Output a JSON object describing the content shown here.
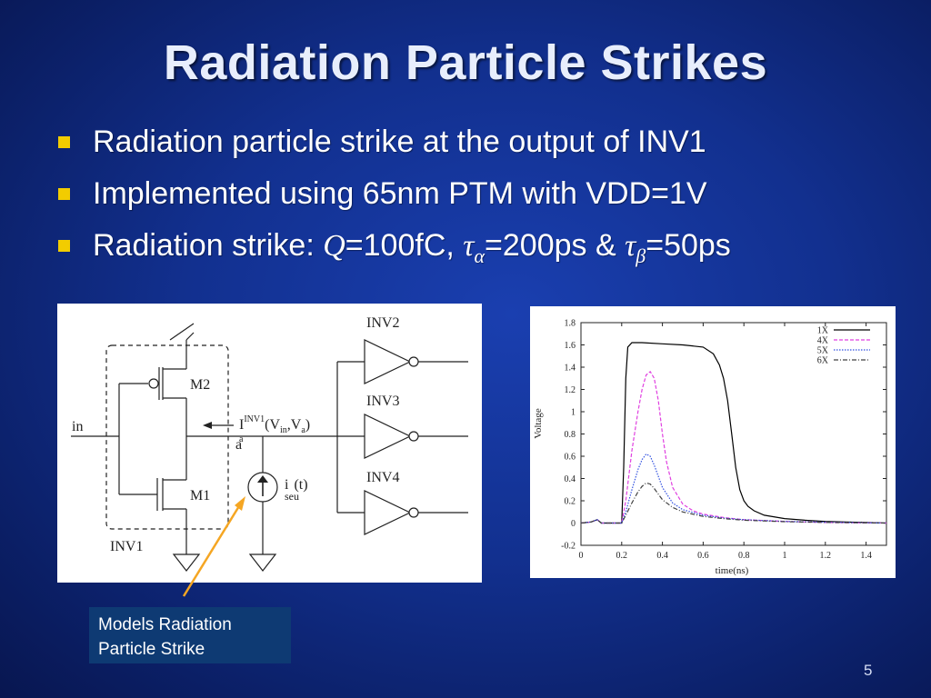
{
  "slide": {
    "title": "Radiation Particle Strikes",
    "bullets": {
      "b1": "Radiation particle strike at the output of INV1",
      "b2": "Implemented using 65nm PTM with VDD=1V",
      "b3_prefix": "Radiation strike: ",
      "b3_q": "Q",
      "b3_q_val": "=100fC, ",
      "b3_tau": "τ",
      "b3_alpha": "α",
      "b3_alpha_val": "=200ps & ",
      "b3_beta": "β",
      "b3_beta_val": "=50ps"
    },
    "callout": {
      "line1": "Models Radiation",
      "line2": "Particle Strike"
    },
    "page_number": "5",
    "accent_color": "#f2cc00",
    "callout_color": "#0e3a73",
    "arrow_color": "#f5a623"
  },
  "circuit": {
    "in_label": "in",
    "inv1_label": "INV1",
    "m1_label": "M1",
    "m2_label": "M2",
    "node_label": "a",
    "current_I": "I",
    "current_sub": "a",
    "current_sup": "INV1",
    "current_args_open": "(V",
    "current_args_in": "in",
    "current_args_mid": ",V",
    "current_args_a": "a",
    "current_args_close": ")",
    "iseu_i": "i",
    "iseu_sub": "seu",
    "iseu_arg": "(t)",
    "inv2_label": "INV2",
    "inv3_label": "INV3",
    "inv4_label": "INV4"
  },
  "chart_data": {
    "type": "line",
    "xlabel": "time(ns)",
    "ylabel": "Voltage",
    "xlim": [
      0,
      1.5
    ],
    "ylim": [
      -0.2,
      1.8
    ],
    "xticks": [
      "0",
      "0.2",
      "0.4",
      "0.6",
      "0.8",
      "1",
      "1.2",
      "1.4"
    ],
    "xtick_values": [
      0,
      0.2,
      0.4,
      0.6,
      0.8,
      1,
      1.2,
      1.4
    ],
    "yticks": [
      "-0.2",
      "0",
      "0.2",
      "0.4",
      "0.6",
      "0.8",
      "1",
      "1.2",
      "1.4",
      "1.6",
      "1.8"
    ],
    "ytick_values": [
      -0.2,
      0,
      0.2,
      0.4,
      0.6,
      0.8,
      1,
      1.2,
      1.4,
      1.6,
      1.8
    ],
    "grid": false,
    "legend_position": "top-right",
    "series": [
      {
        "name": "1X",
        "color": "#000000",
        "dash": "solid",
        "x": [
          0,
          0.05,
          0.08,
          0.1,
          0.2,
          0.21,
          0.22,
          0.23,
          0.25,
          0.3,
          0.4,
          0.5,
          0.6,
          0.65,
          0.68,
          0.7,
          0.72,
          0.74,
          0.76,
          0.78,
          0.8,
          0.82,
          0.85,
          0.9,
          1.0,
          1.1,
          1.2,
          1.3,
          1.4,
          1.5
        ],
        "y": [
          0,
          0.01,
          0.03,
          0,
          0,
          0.5,
          1.3,
          1.58,
          1.62,
          1.62,
          1.61,
          1.6,
          1.58,
          1.52,
          1.42,
          1.3,
          1.1,
          0.8,
          0.5,
          0.3,
          0.2,
          0.15,
          0.11,
          0.07,
          0.04,
          0.025,
          0.015,
          0.01,
          0.005,
          0
        ]
      },
      {
        "name": "4X",
        "color": "#e040e0",
        "dash": "dash",
        "x": [
          0,
          0.05,
          0.08,
          0.1,
          0.2,
          0.22,
          0.25,
          0.28,
          0.3,
          0.32,
          0.34,
          0.36,
          0.38,
          0.4,
          0.42,
          0.45,
          0.5,
          0.55,
          0.6,
          0.7,
          0.8,
          1.0,
          1.2,
          1.5
        ],
        "y": [
          0,
          0.01,
          0.03,
          0,
          0,
          0.2,
          0.65,
          1.0,
          1.2,
          1.33,
          1.36,
          1.3,
          1.1,
          0.8,
          0.55,
          0.32,
          0.17,
          0.11,
          0.08,
          0.05,
          0.03,
          0.015,
          0.005,
          0
        ]
      },
      {
        "name": "5X",
        "color": "#3050e0",
        "dash": "dot",
        "x": [
          0,
          0.05,
          0.08,
          0.1,
          0.2,
          0.22,
          0.25,
          0.28,
          0.3,
          0.32,
          0.34,
          0.36,
          0.38,
          0.4,
          0.45,
          0.5,
          0.6,
          0.7,
          0.8,
          1.0,
          1.2,
          1.5
        ],
        "y": [
          0,
          0.01,
          0.03,
          0,
          0,
          0.1,
          0.3,
          0.48,
          0.57,
          0.62,
          0.6,
          0.52,
          0.42,
          0.32,
          0.18,
          0.12,
          0.07,
          0.045,
          0.03,
          0.015,
          0.008,
          0
        ]
      },
      {
        "name": "6X",
        "color": "#404040",
        "dash": "dashdot",
        "x": [
          0,
          0.05,
          0.08,
          0.1,
          0.2,
          0.22,
          0.25,
          0.28,
          0.3,
          0.32,
          0.34,
          0.36,
          0.38,
          0.4,
          0.45,
          0.5,
          0.6,
          0.7,
          0.8,
          1.0,
          1.2,
          1.5
        ],
        "y": [
          0,
          0.01,
          0.03,
          0,
          0,
          0.07,
          0.18,
          0.28,
          0.33,
          0.36,
          0.35,
          0.31,
          0.26,
          0.21,
          0.14,
          0.1,
          0.06,
          0.04,
          0.025,
          0.012,
          0.006,
          0
        ]
      }
    ]
  }
}
